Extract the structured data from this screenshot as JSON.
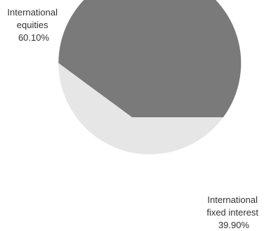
{
  "chart_data": {
    "type": "pie",
    "title": "",
    "start_angle_deg": 0,
    "direction": "counterclockwise",
    "slices": [
      {
        "label_lines": [
          "International",
          "equities",
          "60.10%"
        ],
        "name": "International equities",
        "value": 60.1,
        "color": "#7a7a7a"
      },
      {
        "label_lines": [
          "International",
          "fixed interest",
          "39.90%"
        ],
        "name": "International fixed interest",
        "value": 39.9,
        "color": "#e6e6e6"
      }
    ]
  }
}
